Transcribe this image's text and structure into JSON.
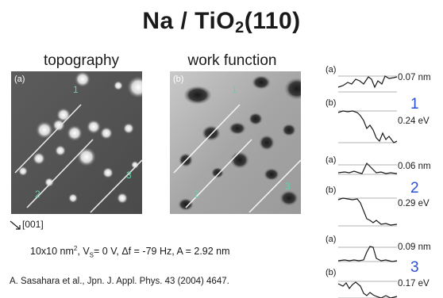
{
  "title": {
    "main": "Na / TiO",
    "sub": "2",
    "tail": "(110)"
  },
  "panels": {
    "topography": {
      "label": "topography",
      "tag": "(a)",
      "sites": [
        "1",
        "2",
        "3"
      ]
    },
    "work_function": {
      "label": "work function",
      "tag": "(b)",
      "sites": [
        "1",
        "2",
        "3"
      ]
    }
  },
  "axis_note": "[001]",
  "params": {
    "size": "10x10 nm",
    "size_exp": "2",
    "vs_pre": "V",
    "vs_sub": "S",
    "vs_rest": "= 0 V, Δf = -79 Hz, A = 2.92 nm"
  },
  "citation": "A. Sasahara et al., Jpn. J. Appl. Phys. 43 (2004) 4647.",
  "profiles": [
    {
      "site": "1",
      "a_tag": "(a)",
      "a_value": "0.07 nm",
      "b_tag": "(b)",
      "b_value": "0.24 eV"
    },
    {
      "site": "2",
      "a_tag": "(a)",
      "a_value": "0.06 nm",
      "b_tag": "(b)",
      "b_value": "0.29 eV"
    },
    {
      "site": "3",
      "a_tag": "(a)",
      "a_value": "0.09 nm",
      "b_tag": "(b)",
      "b_value": "0.17 eV"
    }
  ],
  "colors": {
    "site_number_color": "#2a4fd6",
    "scan_label_color": "#5fd3a6"
  }
}
